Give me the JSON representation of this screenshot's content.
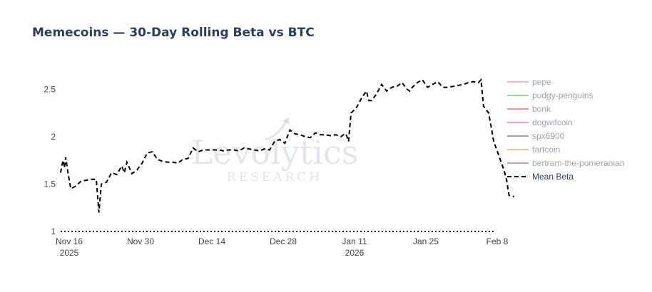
{
  "chart_data": {
    "type": "line",
    "title": "Memecoins — 30-Day Rolling Beta vs BTC",
    "xlabel": "",
    "ylabel": "",
    "x_range": [
      "2025-11-16",
      "2026-02-08"
    ],
    "ylim": [
      1,
      2.75
    ],
    "y_ticks": [
      1,
      1.5,
      2,
      2.5
    ],
    "y_tick_labels": [
      "1",
      "1.5",
      "2",
      "2.5"
    ],
    "x_ticks": [
      {
        "date": "2025-11-16",
        "label": "Nov 16",
        "sublabel": "2025"
      },
      {
        "date": "2025-11-30",
        "label": "Nov 30",
        "sublabel": ""
      },
      {
        "date": "2025-12-14",
        "label": "Dec 14",
        "sublabel": ""
      },
      {
        "date": "2025-12-28",
        "label": "Dec 28",
        "sublabel": ""
      },
      {
        "date": "2026-01-11",
        "label": "Jan 11",
        "sublabel": "2026"
      },
      {
        "date": "2026-01-25",
        "label": "Jan 25",
        "sublabel": ""
      },
      {
        "date": "2026-02-08",
        "label": "Feb 8",
        "sublabel": ""
      }
    ],
    "reference_line": {
      "y": 1,
      "style": "dotted",
      "color": "#1a1a1a"
    },
    "grid": false,
    "legend_position": "right",
    "watermark": {
      "main": "Levolytics",
      "sub": "RESEARCH"
    },
    "series": [
      {
        "name": "pepe",
        "color": "#f0b6d3",
        "style": "solid",
        "values": []
      },
      {
        "name": "pudgy-penguins",
        "color": "#9ed99b",
        "style": "solid",
        "values": []
      },
      {
        "name": "bonk",
        "color": "#ee9b98",
        "style": "solid",
        "values": []
      },
      {
        "name": "dogwifcoin",
        "color": "#ee99ee",
        "style": "solid",
        "values": []
      },
      {
        "name": "spx6900",
        "color": "#a3a3a3",
        "style": "solid",
        "values": []
      },
      {
        "name": "fartcoin",
        "color": "#ecc596",
        "style": "solid",
        "values": []
      },
      {
        "name": "bertram-the-pomeranian",
        "color": "#c79bc7",
        "style": "solid",
        "values": []
      },
      {
        "name": "Mean Beta",
        "color": "#000000",
        "style": "dashed",
        "values": [
          [
            "2025-11-16",
            1.62
          ],
          [
            "2025-11-16T06:00",
            1.7
          ],
          [
            "2025-11-16T12:00",
            1.75
          ],
          [
            "2025-11-16T18:00",
            1.67
          ],
          [
            "2025-11-17",
            1.78
          ],
          [
            "2025-11-17T12:00",
            1.6
          ],
          [
            "2025-11-18",
            1.45
          ],
          [
            "2025-11-19",
            1.48
          ],
          [
            "2025-11-20",
            1.53
          ],
          [
            "2025-11-21",
            1.54
          ],
          [
            "2025-11-22",
            1.55
          ],
          [
            "2025-11-23",
            1.55
          ],
          [
            "2025-11-23T12:00",
            1.2
          ],
          [
            "2025-11-24",
            1.5
          ],
          [
            "2025-11-25",
            1.52
          ],
          [
            "2025-11-26",
            1.62
          ],
          [
            "2025-11-27",
            1.6
          ],
          [
            "2025-11-28",
            1.69
          ],
          [
            "2025-11-28T12:00",
            1.62
          ],
          [
            "2025-11-29",
            1.73
          ],
          [
            "2025-11-30",
            1.61
          ],
          [
            "2025-12-01",
            1.65
          ],
          [
            "2025-12-02",
            1.72
          ],
          [
            "2025-12-03",
            1.83
          ],
          [
            "2025-12-04",
            1.84
          ],
          [
            "2025-12-05",
            1.76
          ],
          [
            "2025-12-06",
            1.74
          ],
          [
            "2025-12-07",
            1.73
          ],
          [
            "2025-12-08",
            1.73
          ],
          [
            "2025-12-09",
            1.72
          ],
          [
            "2025-12-10",
            1.76
          ],
          [
            "2025-12-11",
            1.77
          ],
          [
            "2025-12-12",
            1.88
          ],
          [
            "2025-12-13",
            1.84
          ],
          [
            "2025-12-14",
            1.86
          ],
          [
            "2025-12-15",
            1.86
          ],
          [
            "2025-12-16",
            1.86
          ],
          [
            "2025-12-17",
            1.86
          ],
          [
            "2025-12-18",
            1.85
          ],
          [
            "2025-12-19",
            1.86
          ],
          [
            "2025-12-20",
            1.86
          ],
          [
            "2025-12-21",
            1.85
          ],
          [
            "2025-12-22",
            1.88
          ],
          [
            "2025-12-23",
            1.87
          ],
          [
            "2025-12-24",
            1.86
          ],
          [
            "2025-12-25",
            1.85
          ],
          [
            "2025-12-26",
            1.87
          ],
          [
            "2025-12-27",
            1.86
          ],
          [
            "2025-12-28",
            1.95
          ],
          [
            "2025-12-29",
            1.97
          ],
          [
            "2025-12-30",
            1.93
          ],
          [
            "2025-12-31",
            2.07
          ],
          [
            "2026-01-01",
            2.03
          ],
          [
            "2026-01-02",
            2.02
          ],
          [
            "2026-01-03",
            2.0
          ],
          [
            "2026-01-04",
            1.99
          ],
          [
            "2026-01-05",
            2.04
          ],
          [
            "2026-01-06",
            2.02
          ],
          [
            "2026-01-07",
            2.02
          ],
          [
            "2026-01-08",
            2.01
          ],
          [
            "2026-01-09",
            2.02
          ],
          [
            "2026-01-10",
            2.0
          ],
          [
            "2026-01-10T12:00",
            2.02
          ],
          [
            "2026-01-11",
            2.03
          ],
          [
            "2026-01-11T12:00",
            1.95
          ],
          [
            "2026-01-12",
            2.25
          ],
          [
            "2026-01-13",
            2.3
          ],
          [
            "2026-01-14",
            2.4
          ],
          [
            "2026-01-15",
            2.48
          ],
          [
            "2026-01-15T12:00",
            2.38
          ],
          [
            "2026-01-16",
            2.38
          ],
          [
            "2026-01-17",
            2.45
          ],
          [
            "2026-01-18",
            2.55
          ],
          [
            "2026-01-19",
            2.48
          ],
          [
            "2026-01-20",
            2.52
          ],
          [
            "2026-01-21",
            2.53
          ],
          [
            "2026-01-22",
            2.57
          ],
          [
            "2026-01-23",
            2.5
          ],
          [
            "2026-01-23T12:00",
            2.48
          ],
          [
            "2026-01-24",
            2.52
          ],
          [
            "2026-01-25",
            2.57
          ],
          [
            "2026-01-26",
            2.6
          ],
          [
            "2026-01-27",
            2.52
          ],
          [
            "2026-01-28",
            2.55
          ],
          [
            "2026-01-29",
            2.58
          ],
          [
            "2026-01-30",
            2.52
          ],
          [
            "2026-01-31",
            2.52
          ],
          [
            "2026-02-01",
            2.53
          ],
          [
            "2026-02-02",
            2.54
          ],
          [
            "2026-02-03",
            2.55
          ],
          [
            "2026-02-04",
            2.57
          ],
          [
            "2026-02-05",
            2.58
          ],
          [
            "2026-02-06",
            2.57
          ],
          [
            "2026-02-06T12:00",
            2.6
          ],
          [
            "2026-02-07",
            2.32
          ],
          [
            "2026-02-08",
            2.25
          ],
          [
            "2026-02-08T12:00",
            2.1
          ],
          [
            "2026-02-09",
            1.95
          ],
          [
            "2026-02-10",
            1.8
          ],
          [
            "2026-02-11",
            1.65
          ],
          [
            "2026-02-11T12:00",
            1.55
          ],
          [
            "2026-02-12",
            1.38
          ],
          [
            "2026-02-12T12:00",
            1.37
          ],
          [
            "2026-02-13",
            1.37
          ]
        ]
      }
    ]
  }
}
